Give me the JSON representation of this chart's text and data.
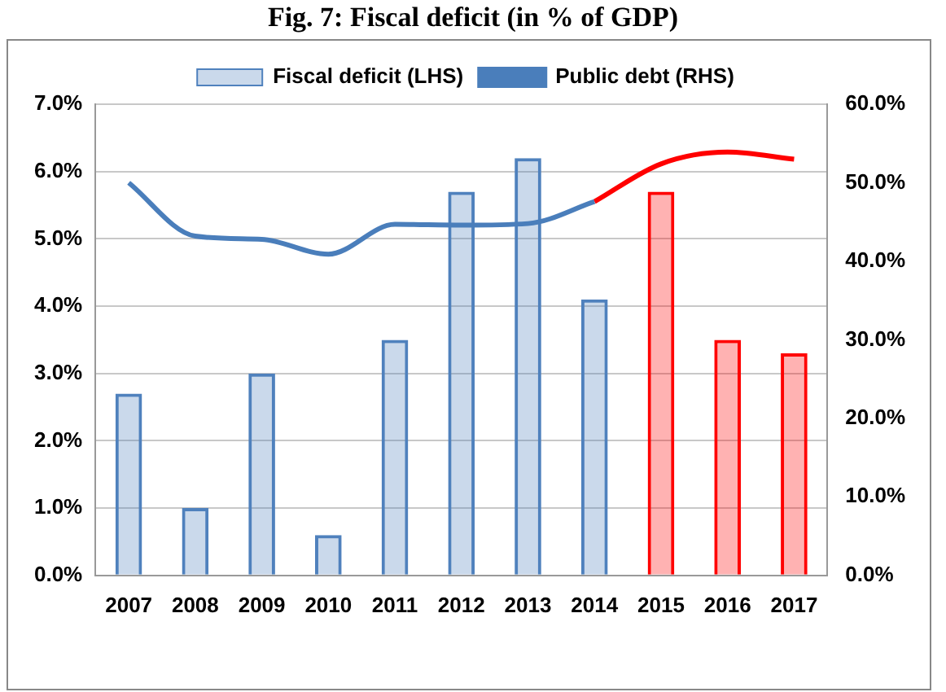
{
  "chart_data": {
    "type": "bar",
    "title": "Fig. 7: Fiscal deficit (in % of GDP)",
    "categories": [
      "2007",
      "2008",
      "2009",
      "2010",
      "2011",
      "2012",
      "2013",
      "2014",
      "2015",
      "2016",
      "2017"
    ],
    "series": [
      {
        "name": "Fiscal deficit (LHS)",
        "color": "#4f81bd",
        "colors": [
          "#4f81bd",
          "#4f81bd",
          "#4f81bd",
          "#4f81bd",
          "#4f81bd",
          "#4f81bd",
          "#4f81bd",
          "#4f81bd",
          "#ff0000",
          "#ff0000",
          "#ff0000"
        ],
        "values": [
          2.7,
          1.0,
          3.0,
          0.6,
          3.5,
          5.7,
          6.2,
          4.1,
          5.7,
          3.5,
          3.3
        ]
      },
      {
        "name": "Public debt (RHS)",
        "type": "line",
        "axis": "y2",
        "color": "#4a7ebb",
        "values": [
          50.0,
          43.2,
          42.8,
          40.9,
          44.7,
          44.6,
          44.8,
          47.6,
          null,
          null,
          null
        ]
      },
      {
        "type": "line",
        "axis": "y2",
        "color": "#ff0000",
        "values": [
          null,
          null,
          null,
          null,
          null,
          null,
          null,
          47.6,
          52.4,
          53.9,
          53.0
        ]
      }
    ],
    "ylim": [
      0,
      7
    ],
    "yticks": [
      {
        "value": 0,
        "label": "0.0%"
      },
      {
        "value": 1,
        "label": "1.0%"
      },
      {
        "value": 2,
        "label": "2.0%"
      },
      {
        "value": 3,
        "label": "3.0%"
      },
      {
        "value": 4,
        "label": "4.0%"
      },
      {
        "value": 5,
        "label": "5.0%"
      },
      {
        "value": 6,
        "label": "6.0%"
      },
      {
        "value": 7,
        "label": "7.0%"
      }
    ],
    "y2lim": [
      0,
      60
    ],
    "y2ticks": [
      {
        "value": 0,
        "label": "0.0%"
      },
      {
        "value": 10,
        "label": "10.0%"
      },
      {
        "value": 20,
        "label": "20.0%"
      },
      {
        "value": 30,
        "label": "30.0%"
      },
      {
        "value": 40,
        "label": "40.0%"
      },
      {
        "value": 50,
        "label": "50.0%"
      },
      {
        "value": 60,
        "label": "60.0%"
      }
    ],
    "grid": "y",
    "legend": "top",
    "marker": "none"
  }
}
